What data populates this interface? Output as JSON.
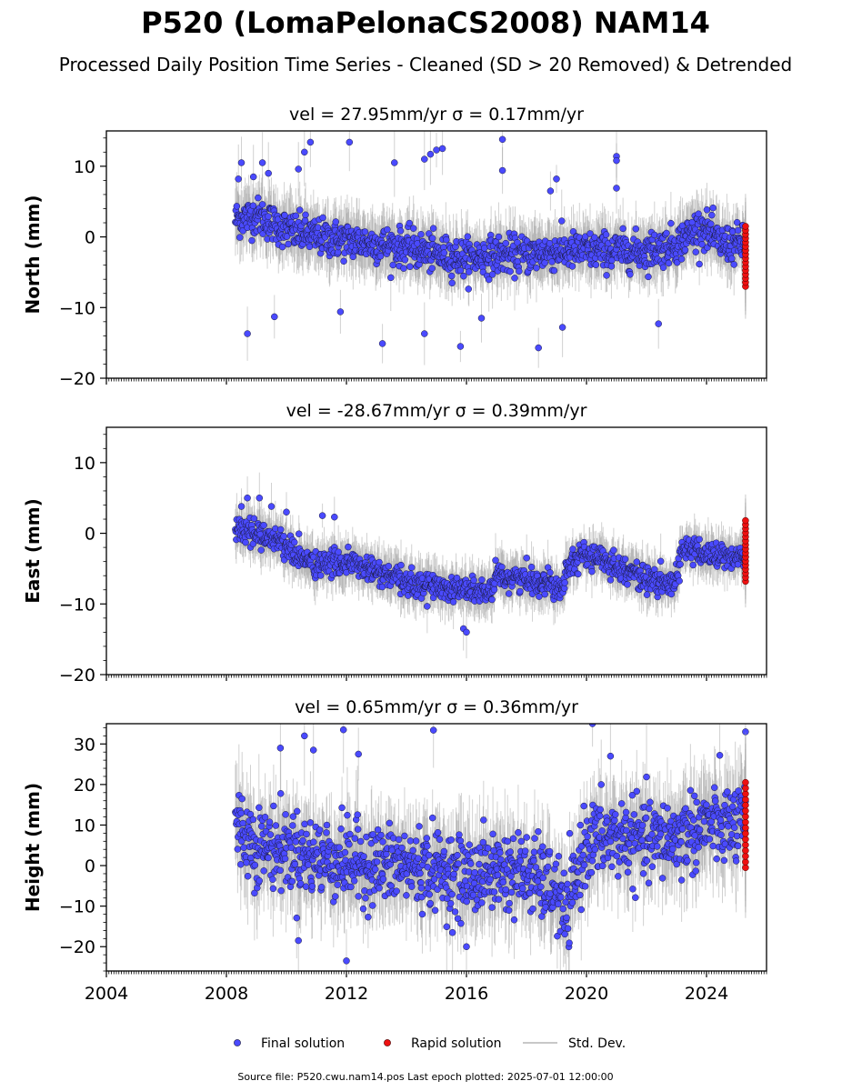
{
  "title": "P520 (LomaPelonaCS2008) NAM14",
  "subtitle": "Processed Daily Position Time Series - Cleaned (SD > 20 Removed) & Detrended",
  "footer": "Source file: P520.cwu.nam14.pos  Last epoch plotted: 2025-07-01 12:00:00",
  "legend": {
    "placement": "bottom-center",
    "items": [
      {
        "label": "Final solution",
        "color": "#4a4aff"
      },
      {
        "label": "Rapid solution",
        "color": "#ee1111"
      },
      {
        "label": "Std. Dev.",
        "color": "#c8c8c8"
      }
    ]
  },
  "colors": {
    "final": "#4a4aff",
    "rapid": "#ee1111",
    "stddev": "#9a9a9a",
    "edge": "#1a1a3a"
  },
  "chart_data": [
    {
      "type": "scatter",
      "panel": "north",
      "title": "vel = 27.95mm/yr   σ = 0.17mm/yr",
      "ylabel": "North (mm)",
      "xlim": [
        2004,
        2026
      ],
      "ylim": [
        -20,
        15
      ],
      "yticks": [
        -20,
        -10,
        0,
        10
      ],
      "xticks": [
        2004,
        2008,
        2012,
        2016,
        2020,
        2024
      ],
      "show_xtick_labels": false,
      "grid": false,
      "series": [
        {
          "name": "Final solution",
          "x_range": [
            2008.3,
            2025.3
          ],
          "trend_x": [
            2008.3,
            2009.0,
            2010.0,
            2011.0,
            2012.0,
            2013.0,
            2014.0,
            2015.0,
            2016.0,
            2017.0,
            2018.0,
            2019.0,
            2020.0,
            2021.0,
            2022.0,
            2023.0,
            2023.8,
            2024.5,
            2025.3
          ],
          "trend_y": [
            2.5,
            3.0,
            1.0,
            0.0,
            -0.5,
            -1.0,
            -1.5,
            -2.5,
            -3.0,
            -2.5,
            -2.5,
            -2.0,
            -2.0,
            -2.0,
            -2.0,
            -1.0,
            1.5,
            -1.0,
            -1.0
          ],
          "scatter_sd": 1.3,
          "count": 1150
        },
        {
          "name": "Rapid solution",
          "x": 2025.3,
          "y_range": [
            -7,
            1.5
          ],
          "count": 16
        }
      ],
      "outliers_x": [
        2008.4,
        2008.5,
        2008.9,
        2009.2,
        2009.4,
        2010.4,
        2010.6,
        2010.8,
        2012.1,
        2013.6,
        2014.6,
        2014.8,
        2015.0,
        2015.2,
        2017.2,
        2017.2,
        2018.8,
        2019.0,
        2021.0,
        2021.0,
        2021.0,
        2008.7,
        2009.6,
        2011.8,
        2013.2,
        2014.6,
        2015.8,
        2016.5,
        2018.4,
        2019.2,
        2022.4
      ],
      "outliers_y": [
        8.2,
        10.5,
        8.5,
        10.5,
        9.0,
        9.6,
        12.0,
        13.4,
        13.4,
        10.5,
        11.0,
        11.7,
        12.3,
        12.5,
        13.8,
        9.4,
        6.5,
        8.2,
        11.4,
        10.8,
        6.9,
        -13.7,
        -11.3,
        -10.6,
        -15.1,
        -13.7,
        -15.5,
        -11.5,
        -15.7,
        -12.8,
        -12.3
      ]
    },
    {
      "type": "scatter",
      "panel": "east",
      "title": "vel = -28.67mm/yr   σ = 0.39mm/yr",
      "ylabel": "East (mm)",
      "xlim": [
        2004,
        2026
      ],
      "ylim": [
        -20,
        15
      ],
      "yticks": [
        -20,
        -10,
        0,
        10
      ],
      "xticks": [
        2004,
        2008,
        2012,
        2016,
        2020,
        2024
      ],
      "show_xtick_labels": false,
      "grid": false,
      "series": [
        {
          "name": "Final solution",
          "x_range": [
            2008.3,
            2025.3
          ],
          "trend_x": [
            2008.3,
            2009.0,
            2009.8,
            2010.3,
            2011.0,
            2012.0,
            2013.0,
            2014.0,
            2015.0,
            2016.0,
            2016.9,
            2017.0,
            2018.0,
            2019.2,
            2019.4,
            2020.0,
            2021.0,
            2022.0,
            2022.9,
            2023.2,
            2024.0,
            2025.3
          ],
          "trend_y": [
            0.5,
            0.0,
            -1.0,
            -3.0,
            -4.5,
            -4.0,
            -5.5,
            -7.0,
            -7.5,
            -8.0,
            -8.5,
            -6.0,
            -6.5,
            -7.5,
            -4.0,
            -3.0,
            -4.5,
            -6.5,
            -7.5,
            -2.0,
            -3.0,
            -3.5
          ],
          "scatter_sd": 0.9,
          "count": 1150
        },
        {
          "name": "Rapid solution",
          "x": 2025.3,
          "y_range": [
            -6.8,
            1.8
          ],
          "count": 16
        }
      ],
      "outliers_x": [
        2008.7,
        2009.1,
        2009.5,
        2010.0,
        2011.2,
        2011.6,
        2015.9,
        2016.0,
        2008.5
      ],
      "outliers_y": [
        5.0,
        5.0,
        3.8,
        3.0,
        2.5,
        2.3,
        -13.5,
        -14.0,
        3.8
      ]
    },
    {
      "type": "scatter",
      "panel": "height",
      "title": "vel = 0.65mm/yr   σ = 0.36mm/yr",
      "ylabel": "Height (mm)",
      "xlim": [
        2004,
        2026
      ],
      "ylim": [
        -26,
        35
      ],
      "yticks": [
        -20,
        -10,
        0,
        10,
        20,
        30
      ],
      "xticks": [
        2004,
        2008,
        2012,
        2016,
        2020,
        2024
      ],
      "show_xtick_labels": true,
      "grid": false,
      "series": [
        {
          "name": "Final solution",
          "x_range": [
            2008.3,
            2025.3
          ],
          "trend_x": [
            2008.3,
            2009.0,
            2010.0,
            2011.0,
            2012.0,
            2013.0,
            2014.0,
            2015.0,
            2016.0,
            2017.0,
            2018.0,
            2019.0,
            2019.3,
            2020.0,
            2021.0,
            2022.0,
            2023.0,
            2024.0,
            2025.3
          ],
          "trend_y": [
            10.0,
            5.0,
            4.0,
            2.0,
            1.0,
            0.0,
            0.0,
            -1.0,
            -3.0,
            -1.0,
            -2.0,
            -6.0,
            -13.0,
            6.0,
            7.0,
            6.0,
            7.0,
            10.0,
            10.0
          ],
          "scatter_sd": 4.8,
          "count": 1150
        },
        {
          "name": "Rapid solution",
          "x": 2025.3,
          "y_range": [
            -0.5,
            20.5
          ],
          "count": 16
        }
      ],
      "outliers_x": [
        2009.8,
        2010.6,
        2010.9,
        2011.9,
        2012.4,
        2014.9,
        2020.2,
        2020.8,
        2025.3,
        2010.4,
        2012.0,
        2016.0
      ],
      "outliers_y": [
        29.0,
        32.0,
        28.5,
        33.5,
        27.5,
        33.4,
        35.0,
        27.0,
        33.0,
        -18.5,
        -23.5,
        -20.0
      ]
    }
  ]
}
